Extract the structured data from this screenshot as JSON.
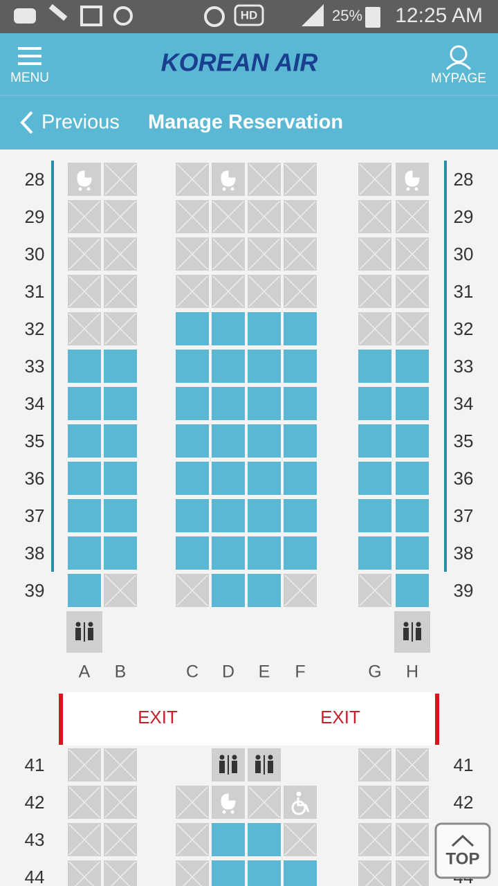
{
  "status_bar": {
    "hd": "HD",
    "battery": "25%",
    "time": "12:25 AM"
  },
  "header": {
    "menu": "MENU",
    "logo": "KOREAN AIR",
    "mypage": "MYPAGE"
  },
  "nav": {
    "back": "Previous",
    "title": "Manage Reservation"
  },
  "seat_map": {
    "upper_rows": [
      28,
      29,
      30,
      31,
      32,
      33,
      34,
      35,
      36,
      37,
      38,
      39
    ],
    "columns": [
      "A",
      "B",
      "C",
      "D",
      "E",
      "F",
      "G",
      "H"
    ],
    "exit_labels": [
      "EXIT",
      "EXIT"
    ],
    "lower_rows": [
      41,
      42,
      43,
      44
    ]
  },
  "top_button": "TOP"
}
